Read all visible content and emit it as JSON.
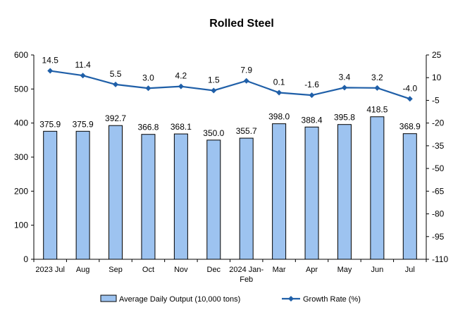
{
  "colors": {
    "bar_fill": "#9DC3F0",
    "bar_stroke": "#000000",
    "line": "#1F5FA8",
    "axis": "#000000"
  },
  "chart_data": {
    "type": "bar",
    "title": "Rolled Steel",
    "categories": [
      [
        "2023 Jul"
      ],
      [
        "Aug"
      ],
      [
        "Sep"
      ],
      [
        "Oct"
      ],
      [
        "Nov"
      ],
      [
        "Dec"
      ],
      [
        "2024 Jan-",
        "Feb"
      ],
      [
        "Mar"
      ],
      [
        "Apr"
      ],
      [
        "May"
      ],
      [
        "Jun"
      ],
      [
        "Jul"
      ]
    ],
    "series": [
      {
        "name": "Average Daily Output (10,000 tons)",
        "type": "bar",
        "axis": "left",
        "values": [
          375.9,
          375.9,
          392.7,
          366.8,
          368.1,
          350.0,
          355.7,
          398.0,
          388.4,
          395.8,
          418.5,
          368.9
        ],
        "labels": [
          "375.9",
          "375.9",
          "392.7",
          "366.8",
          "368.1",
          "350.0",
          "355.7",
          "398.0",
          "388.4",
          "395.8",
          "418.5",
          "368.9"
        ]
      },
      {
        "name": "Growth Rate (%)",
        "type": "line",
        "axis": "right",
        "values": [
          14.5,
          11.4,
          5.5,
          3.0,
          4.2,
          1.5,
          7.9,
          0.1,
          -1.6,
          3.4,
          3.2,
          -4.0
        ],
        "labels": [
          "14.5",
          "11.4",
          "5.5",
          "3.0",
          "4.2",
          "1.5",
          "7.9",
          "0.1",
          "-1.6",
          "3.4",
          "3.2",
          "-4.0"
        ]
      }
    ],
    "y_left": {
      "range": [
        0,
        600
      ],
      "ticks": [
        0,
        100,
        200,
        300,
        400,
        500,
        600
      ],
      "tick_labels": [
        "0",
        "100",
        "200",
        "300",
        "400",
        "500",
        "600"
      ]
    },
    "y_right": {
      "range": [
        -110,
        25
      ],
      "ticks": [
        -110,
        -95,
        -80,
        -65,
        -50,
        -35,
        -20,
        -5,
        10,
        25
      ],
      "tick_labels": [
        "-110",
        "-95",
        "-80",
        "-65",
        "-50",
        "-35",
        "-20",
        "-5",
        "10",
        "25"
      ]
    },
    "grid": false,
    "legend_position": "bottom"
  }
}
